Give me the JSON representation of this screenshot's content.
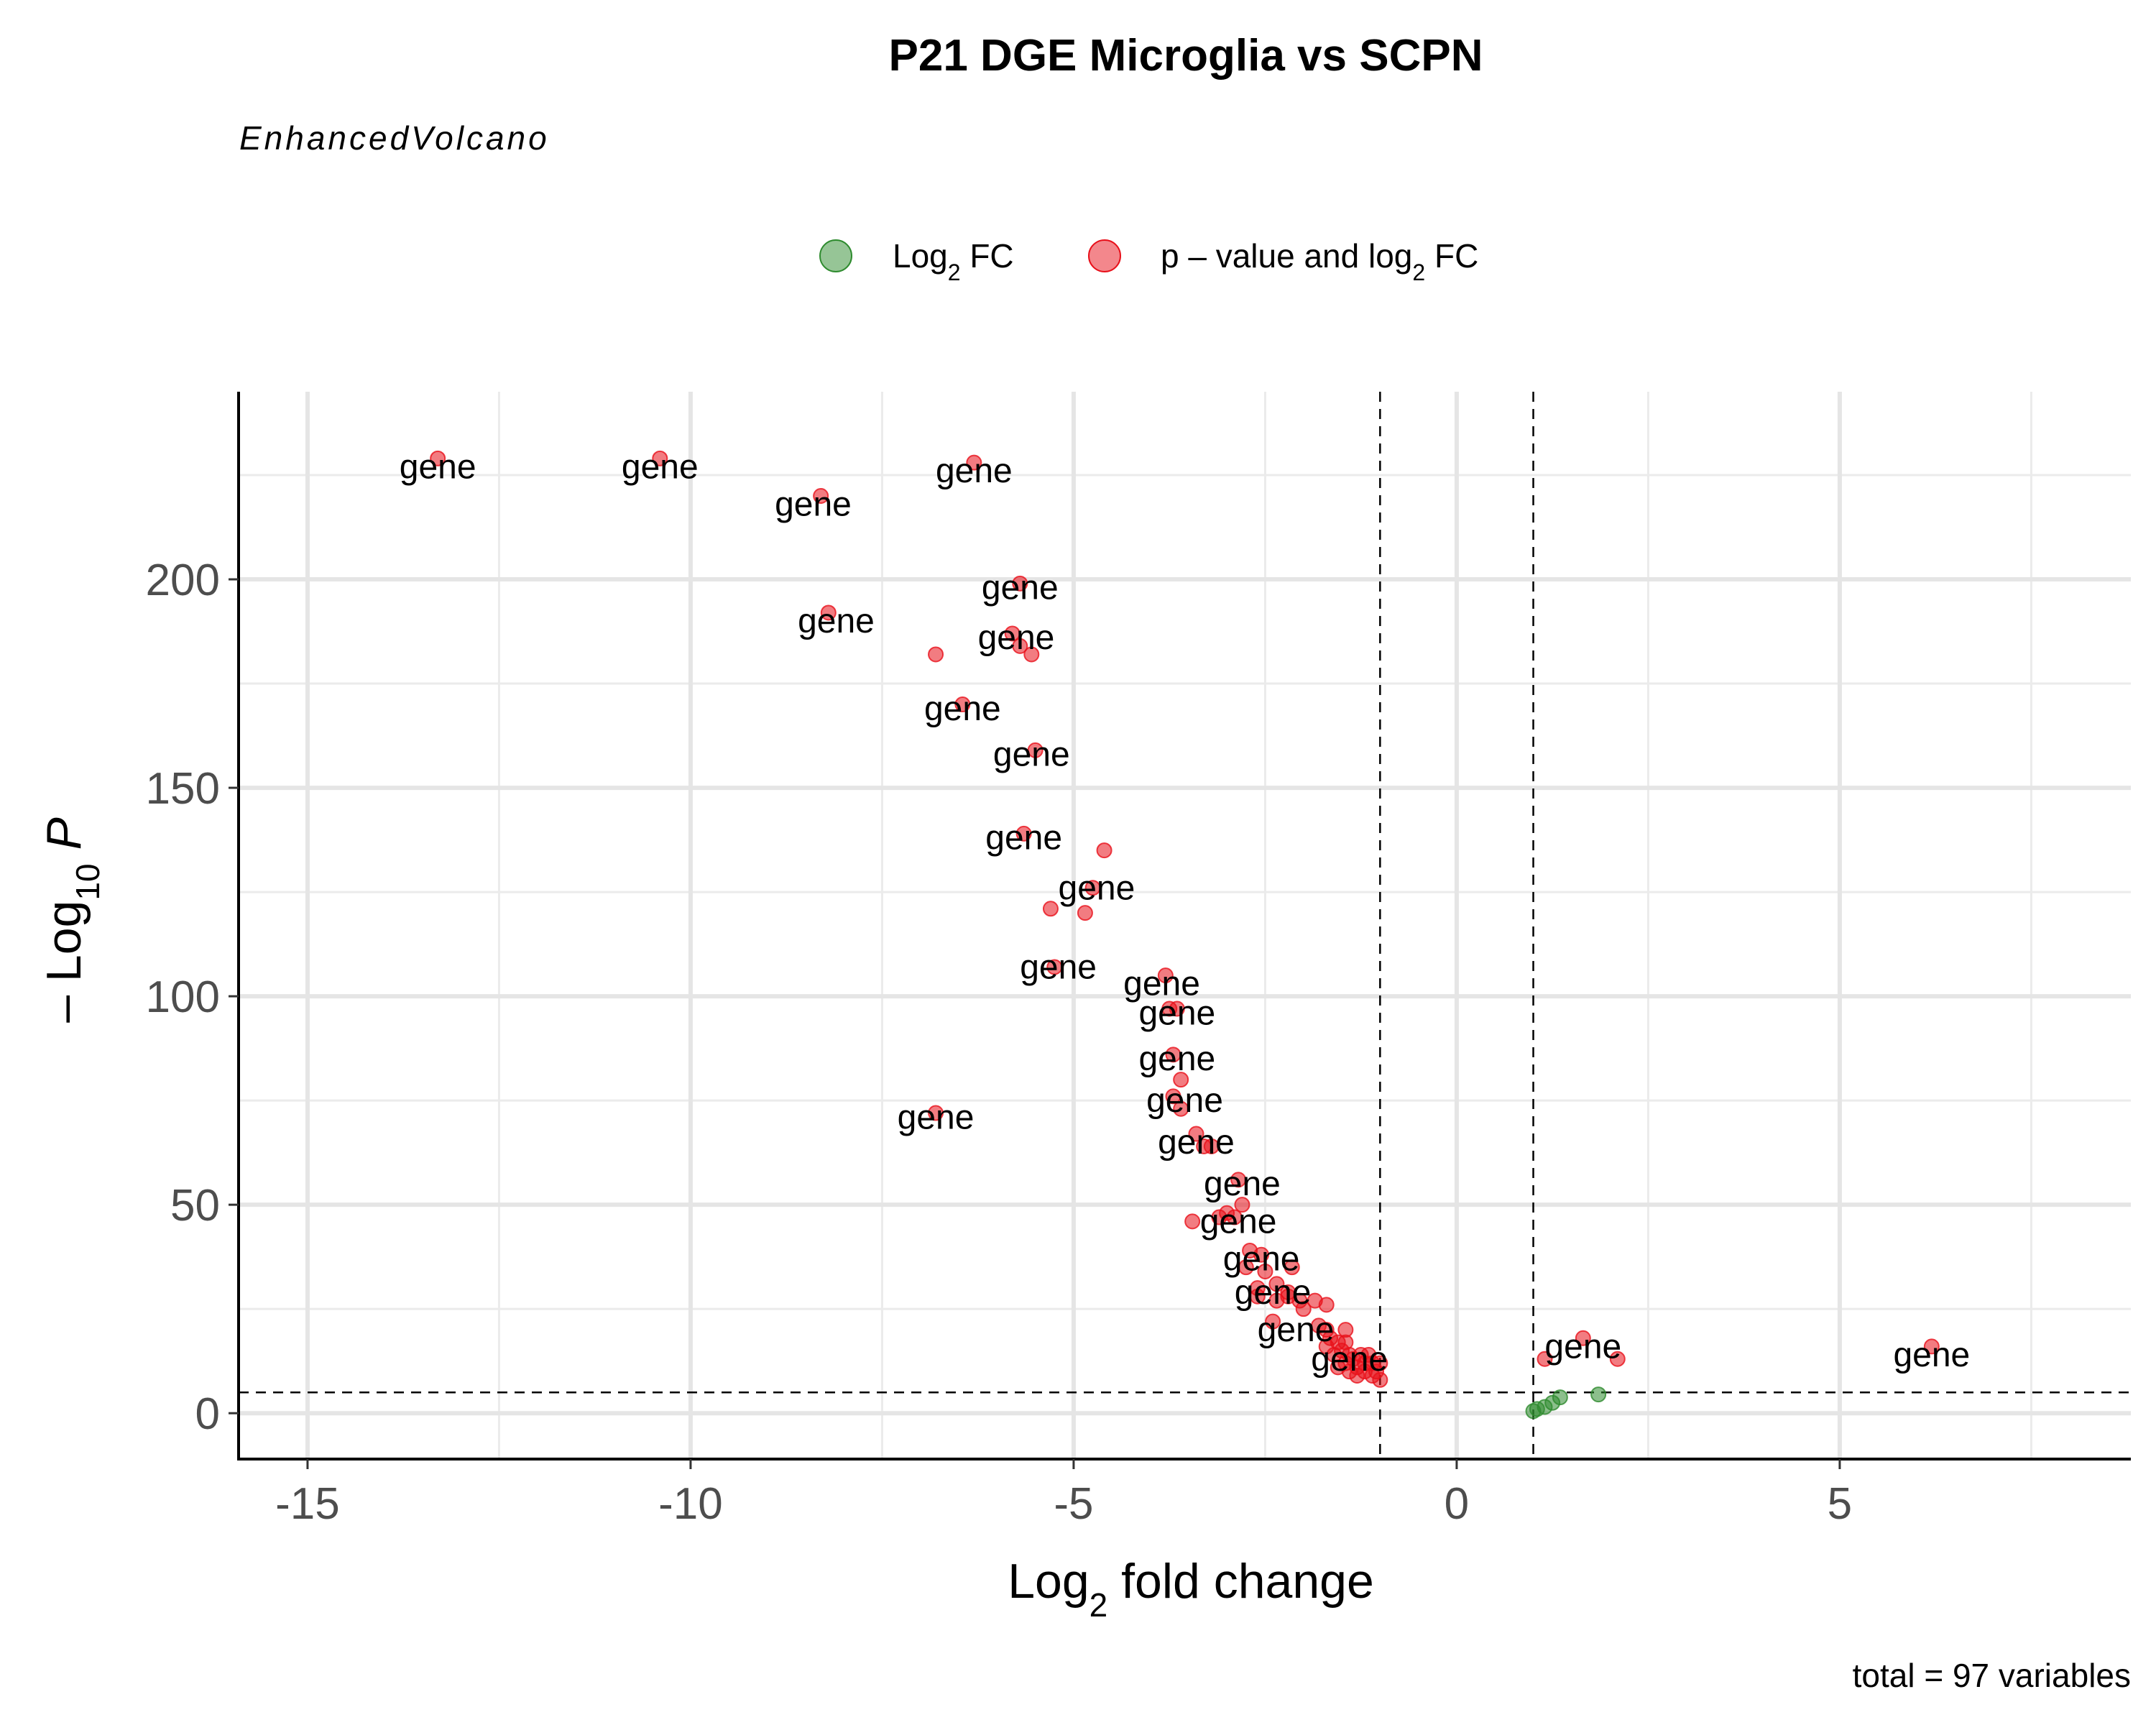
{
  "chart_data": {
    "type": "scatter",
    "title": "P21 DGE Microglia vs SCPN",
    "subtitle": "EnhancedVolcano",
    "xlabel": {
      "base": "Log",
      "sub": "2",
      "rest": " fold change"
    },
    "ylabel": {
      "prefix": "– Log",
      "sub": "10",
      "italic": " P"
    },
    "caption": "total = 97 variables",
    "xlim": [
      -15.9,
      8.8
    ],
    "ylim": [
      -11,
      245
    ],
    "x_ticks": [
      -15,
      -10,
      -5,
      0,
      5
    ],
    "x_tick_labels": [
      "-15",
      "-10",
      "-5",
      "0",
      "5"
    ],
    "y_ticks": [
      0,
      50,
      100,
      150,
      200
    ],
    "y_tick_labels": [
      "0",
      "50",
      "100",
      "150",
      "200"
    ],
    "cutoffs": {
      "log2fc": [
        -1,
        1
      ],
      "neg_log10_p": 5
    },
    "grid": true,
    "legend_position": "top",
    "legend": [
      {
        "name": "Log",
        "sub": "2",
        "rest": " FC",
        "color": "#2e8b2e"
      },
      {
        "name": "p – value and log",
        "sub": "2",
        "rest": " FC",
        "color": "#e8101a"
      }
    ],
    "series": [
      {
        "name": "Log2 FC",
        "color": "#2e8b2e",
        "points": [
          {
            "x": 1.0,
            "y": 0.5
          },
          {
            "x": 1.05,
            "y": 1.0
          },
          {
            "x": 1.15,
            "y": 1.5
          },
          {
            "x": 1.25,
            "y": 2.5
          },
          {
            "x": 1.35,
            "y": 3.8
          },
          {
            "x": 1.85,
            "y": 4.5
          }
        ]
      },
      {
        "name": "p - value and log2 FC",
        "color": "#e8101a",
        "points": [
          {
            "x": -13.3,
            "y": 229
          },
          {
            "x": -10.4,
            "y": 229
          },
          {
            "x": -8.3,
            "y": 220
          },
          {
            "x": -6.3,
            "y": 228
          },
          {
            "x": -5.7,
            "y": 199
          },
          {
            "x": -8.2,
            "y": 192
          },
          {
            "x": -6.8,
            "y": 182
          },
          {
            "x": -5.8,
            "y": 187
          },
          {
            "x": -5.7,
            "y": 184
          },
          {
            "x": -5.55,
            "y": 182
          },
          {
            "x": -6.45,
            "y": 170
          },
          {
            "x": -5.5,
            "y": 159
          },
          {
            "x": -5.65,
            "y": 139
          },
          {
            "x": -4.6,
            "y": 135
          },
          {
            "x": -4.75,
            "y": 126
          },
          {
            "x": -5.3,
            "y": 121
          },
          {
            "x": -4.85,
            "y": 120
          },
          {
            "x": -5.25,
            "y": 107
          },
          {
            "x": -3.8,
            "y": 105
          },
          {
            "x": -3.75,
            "y": 97
          },
          {
            "x": -3.65,
            "y": 97
          },
          {
            "x": -3.7,
            "y": 86
          },
          {
            "x": -3.6,
            "y": 80
          },
          {
            "x": -6.8,
            "y": 72
          },
          {
            "x": -3.7,
            "y": 76
          },
          {
            "x": -3.6,
            "y": 73
          },
          {
            "x": -3.4,
            "y": 67
          },
          {
            "x": -3.3,
            "y": 64
          },
          {
            "x": -3.2,
            "y": 64
          },
          {
            "x": -2.85,
            "y": 56
          },
          {
            "x": -2.8,
            "y": 50
          },
          {
            "x": -3.45,
            "y": 46
          },
          {
            "x": -3.1,
            "y": 47
          },
          {
            "x": -3.0,
            "y": 48
          },
          {
            "x": -2.9,
            "y": 47
          },
          {
            "x": -2.7,
            "y": 39
          },
          {
            "x": -2.55,
            "y": 38
          },
          {
            "x": -2.75,
            "y": 35
          },
          {
            "x": -2.5,
            "y": 34
          },
          {
            "x": -2.15,
            "y": 35
          },
          {
            "x": -2.6,
            "y": 30
          },
          {
            "x": -2.35,
            "y": 31
          },
          {
            "x": -2.2,
            "y": 29
          },
          {
            "x": -2.6,
            "y": 28
          },
          {
            "x": -2.35,
            "y": 27
          },
          {
            "x": -2.2,
            "y": 28
          },
          {
            "x": -2.05,
            "y": 27
          },
          {
            "x": -1.85,
            "y": 27
          },
          {
            "x": -1.7,
            "y": 26
          },
          {
            "x": -2.0,
            "y": 25
          },
          {
            "x": -2.4,
            "y": 22
          },
          {
            "x": -1.8,
            "y": 21
          },
          {
            "x": -1.7,
            "y": 20
          },
          {
            "x": -1.45,
            "y": 20
          },
          {
            "x": -1.65,
            "y": 18
          },
          {
            "x": -1.55,
            "y": 17
          },
          {
            "x": -1.45,
            "y": 17
          },
          {
            "x": -1.7,
            "y": 16
          },
          {
            "x": -1.5,
            "y": 15
          },
          {
            "x": -1.6,
            "y": 14
          },
          {
            "x": -1.4,
            "y": 14
          },
          {
            "x": -1.25,
            "y": 14
          },
          {
            "x": -1.15,
            "y": 14
          },
          {
            "x": -1.35,
            "y": 13
          },
          {
            "x": -1.2,
            "y": 12
          },
          {
            "x": -1.45,
            "y": 12
          },
          {
            "x": -1.1,
            "y": 12
          },
          {
            "x": -1.3,
            "y": 11
          },
          {
            "x": -1.55,
            "y": 11
          },
          {
            "x": -1.2,
            "y": 10
          },
          {
            "x": -1.05,
            "y": 10
          },
          {
            "x": -1.4,
            "y": 10
          },
          {
            "x": -1.1,
            "y": 9
          },
          {
            "x": -1.0,
            "y": 8
          },
          {
            "x": -1.3,
            "y": 9
          },
          {
            "x": -1.0,
            "y": 12
          },
          {
            "x": 1.15,
            "y": 13
          },
          {
            "x": 1.65,
            "y": 18
          },
          {
            "x": 2.1,
            "y": 13
          },
          {
            "x": 6.2,
            "y": 16
          }
        ]
      }
    ],
    "labels": [
      {
        "text": "gene",
        "x": -13.3,
        "y": 227
      },
      {
        "text": "gene",
        "x": -10.4,
        "y": 227
      },
      {
        "text": "gene",
        "x": -8.4,
        "y": 218
      },
      {
        "text": "gene",
        "x": -6.3,
        "y": 226
      },
      {
        "text": "gene",
        "x": -5.7,
        "y": 198
      },
      {
        "text": "gene",
        "x": -8.1,
        "y": 190
      },
      {
        "text": "gene",
        "x": -5.75,
        "y": 186
      },
      {
        "text": "gene",
        "x": -6.45,
        "y": 169
      },
      {
        "text": "gene",
        "x": -5.55,
        "y": 158
      },
      {
        "text": "gene",
        "x": -5.65,
        "y": 138
      },
      {
        "text": "gene",
        "x": -4.7,
        "y": 126
      },
      {
        "text": "gene",
        "x": -5.2,
        "y": 107
      },
      {
        "text": "gene",
        "x": -3.85,
        "y": 103
      },
      {
        "text": "gene",
        "x": -3.65,
        "y": 96
      },
      {
        "text": "gene",
        "x": -3.65,
        "y": 85
      },
      {
        "text": "gene",
        "x": -6.8,
        "y": 71
      },
      {
        "text": "gene",
        "x": -3.55,
        "y": 75
      },
      {
        "text": "gene",
        "x": -3.4,
        "y": 65
      },
      {
        "text": "gene",
        "x": -2.8,
        "y": 55
      },
      {
        "text": "gene",
        "x": -2.85,
        "y": 46
      },
      {
        "text": "gene",
        "x": -2.55,
        "y": 37
      },
      {
        "text": "gene",
        "x": -2.4,
        "y": 29
      },
      {
        "text": "gene",
        "x": -2.1,
        "y": 20
      },
      {
        "text": "gene",
        "x": -1.4,
        "y": 13
      },
      {
        "text": "gene",
        "x": 1.65,
        "y": 16
      },
      {
        "text": "gene",
        "x": 6.2,
        "y": 14
      }
    ]
  }
}
